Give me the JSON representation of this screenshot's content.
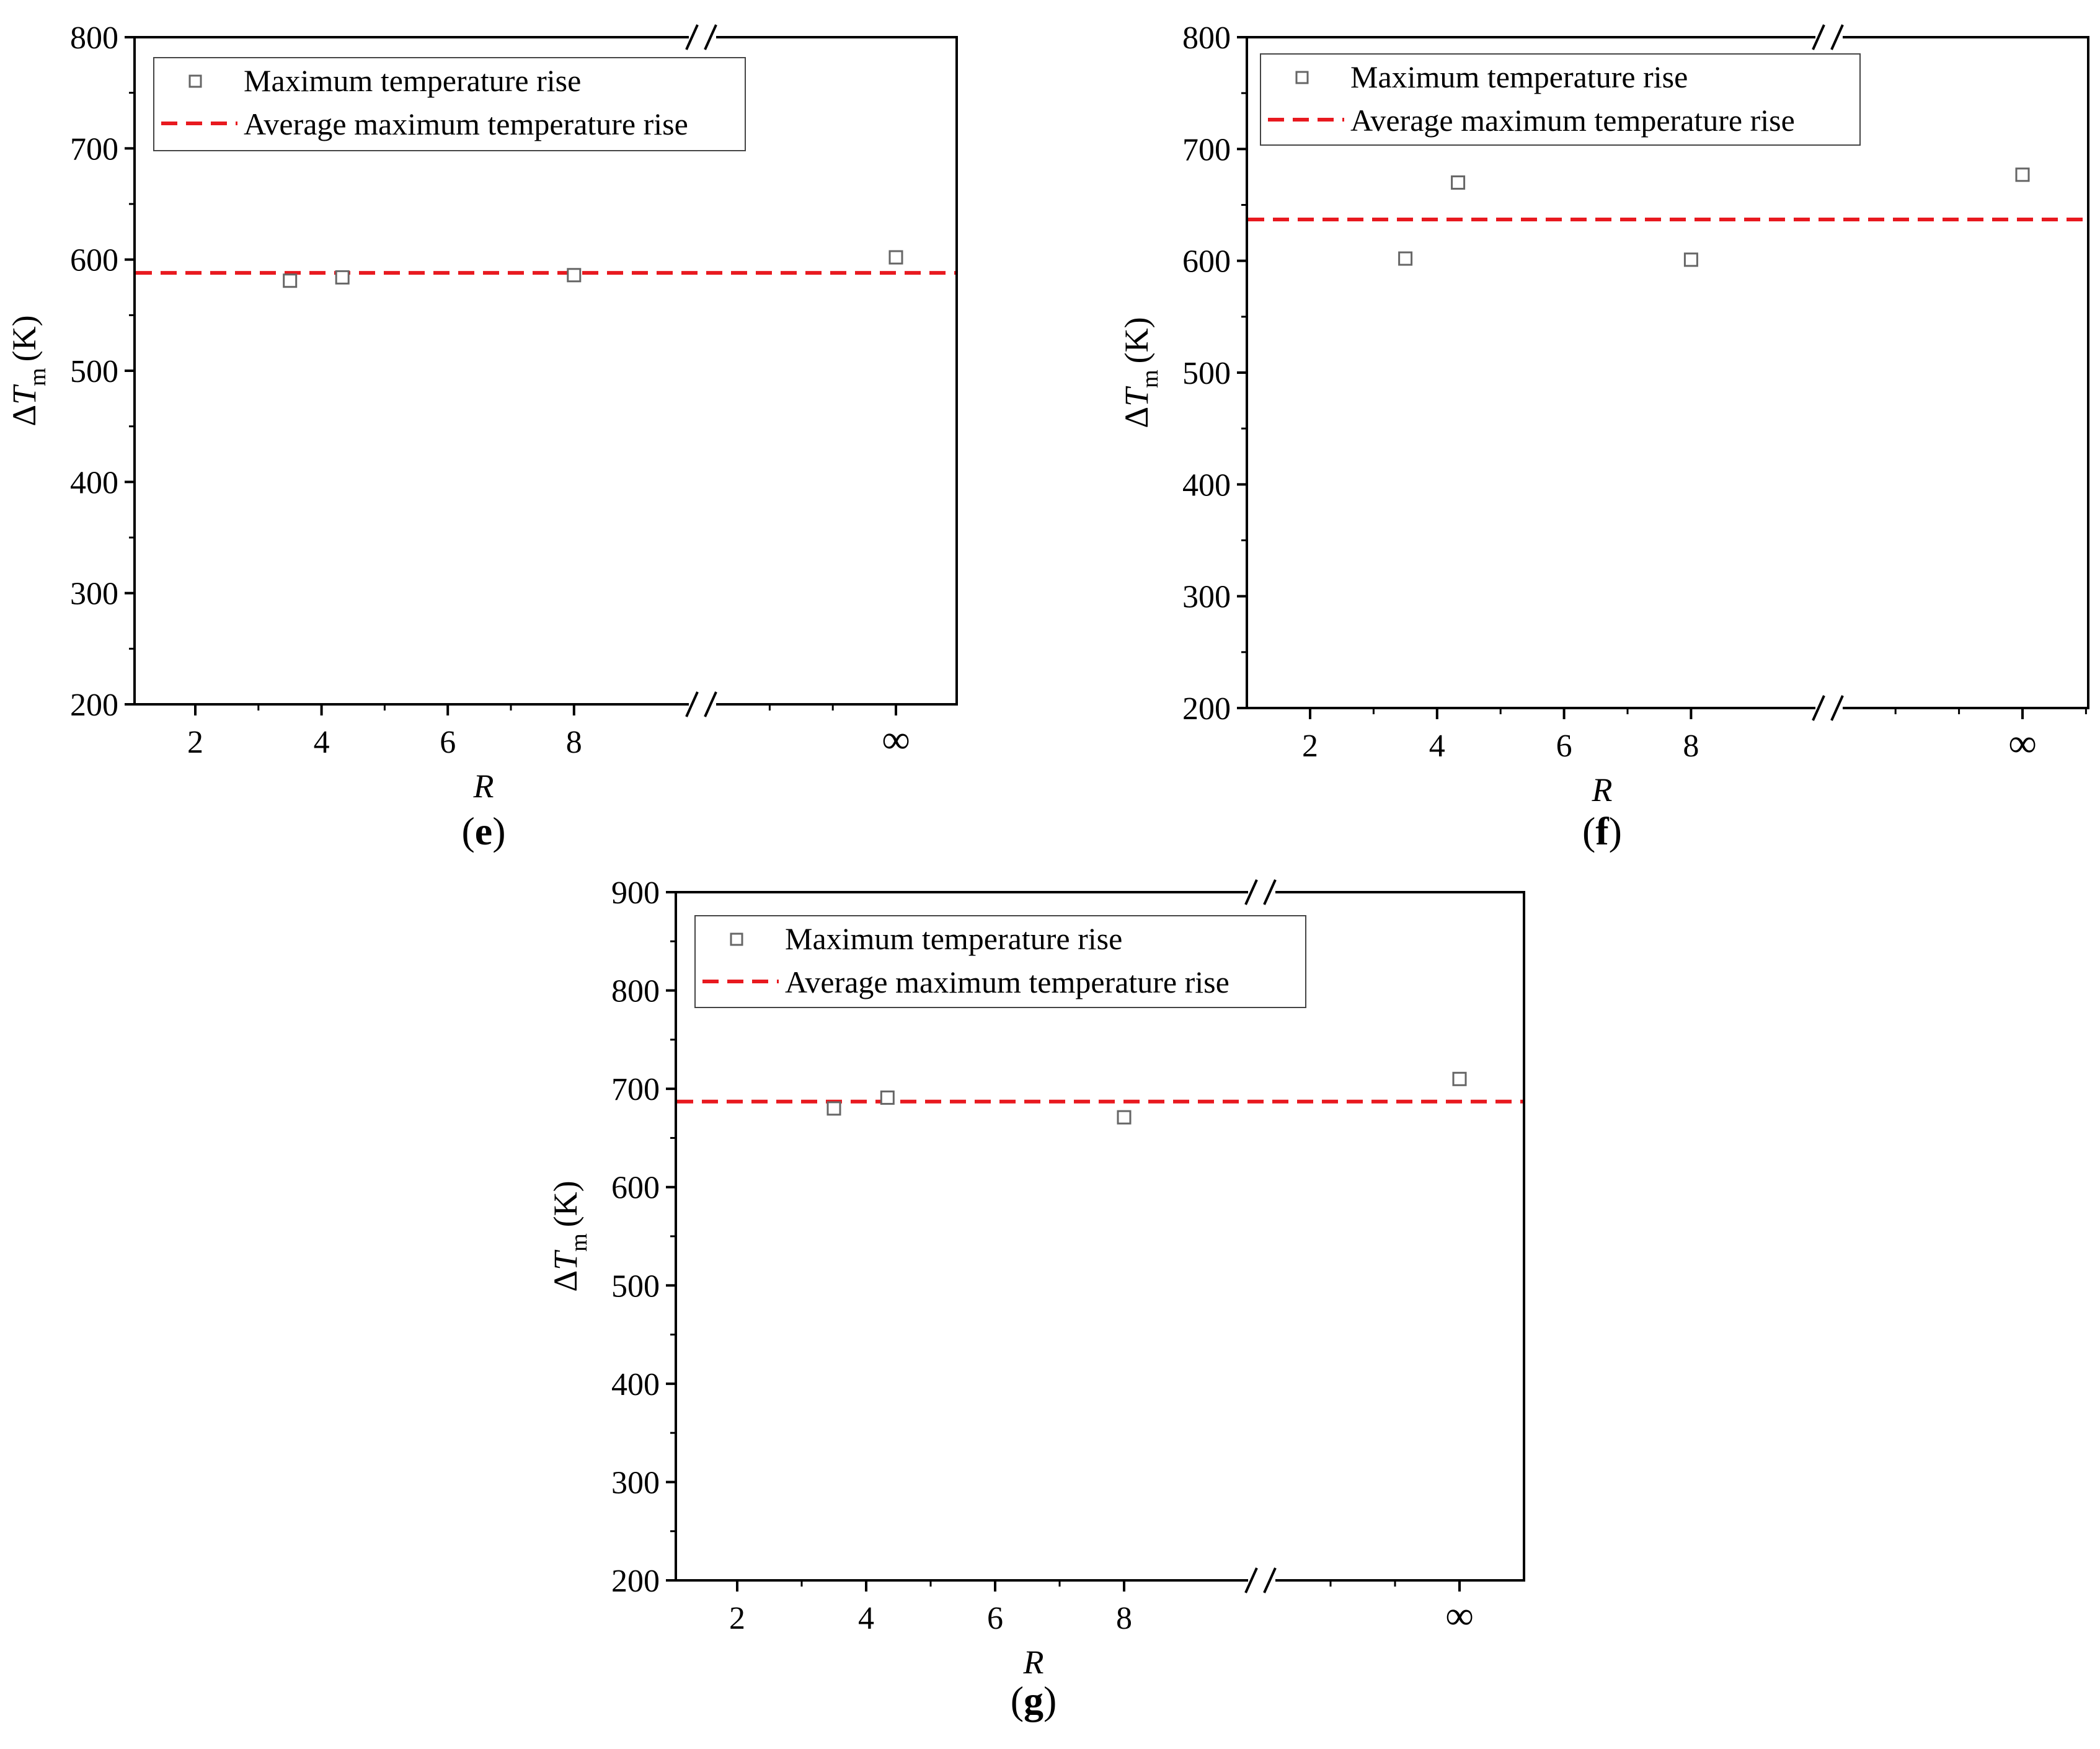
{
  "chart_data": [
    {
      "panel": "(e)",
      "panel_letter": "e",
      "type": "scatter",
      "xlabel": "R",
      "ylabel": "ΔT",
      "ylabel_subscript": "m",
      "ylabel_unit": "(K)",
      "ylim": [
        200,
        800
      ],
      "yticks": [
        200,
        300,
        400,
        500,
        600,
        700,
        800
      ],
      "xticks": [
        "2",
        "4",
        "6",
        "8",
        "∞"
      ],
      "x_axis_break": true,
      "legend": {
        "position": "top-left",
        "marker_entry": "Maximum temperature rise",
        "line_entry": "Average maximum temperature rise"
      },
      "series": [
        {
          "name": "Maximum temperature rise",
          "marker": "hollow-square",
          "color": "#666666",
          "points": [
            {
              "x": 3.5,
              "y": 581
            },
            {
              "x": 4.33,
              "y": 584
            },
            {
              "x": 8,
              "y": 586
            },
            {
              "x": "∞",
              "y": 602
            }
          ]
        },
        {
          "name": "Average maximum temperature rise",
          "style": "dashed",
          "color": "#e8191f",
          "y": 588
        }
      ]
    },
    {
      "panel": "(f)",
      "panel_letter": "f",
      "type": "scatter",
      "xlabel": "R",
      "ylabel": "ΔT",
      "ylabel_subscript": "m",
      "ylabel_unit": "(K)",
      "ylim": [
        200,
        800
      ],
      "yticks": [
        200,
        300,
        400,
        500,
        600,
        700,
        800
      ],
      "xticks": [
        "2",
        "4",
        "6",
        "8",
        "∞"
      ],
      "x_axis_break": true,
      "legend": {
        "position": "top-left",
        "marker_entry": "Maximum temperature rise",
        "line_entry": "Average maximum temperature rise"
      },
      "series": [
        {
          "name": "Maximum temperature rise",
          "marker": "hollow-square",
          "color": "#666666",
          "points": [
            {
              "x": 3.5,
              "y": 602
            },
            {
              "x": 4.33,
              "y": 670
            },
            {
              "x": 8,
              "y": 601
            },
            {
              "x": "∞",
              "y": 677
            }
          ]
        },
        {
          "name": "Average maximum temperature rise",
          "style": "dashed",
          "color": "#e8191f",
          "y": 637
        }
      ]
    },
    {
      "panel": "(g)",
      "panel_letter": "g",
      "type": "scatter",
      "xlabel": "R",
      "ylabel": "ΔT",
      "ylabel_subscript": "m",
      "ylabel_unit": "(K)",
      "ylim": [
        200,
        900
      ],
      "yticks": [
        200,
        300,
        400,
        500,
        600,
        700,
        800,
        900
      ],
      "xticks": [
        "2",
        "4",
        "6",
        "8",
        "∞"
      ],
      "x_axis_break": true,
      "legend": {
        "position": "top-left",
        "marker_entry": "Maximum temperature rise",
        "line_entry": "Average maximum temperature rise"
      },
      "series": [
        {
          "name": "Maximum temperature rise",
          "marker": "hollow-square",
          "color": "#666666",
          "points": [
            {
              "x": 3.5,
              "y": 680
            },
            {
              "x": 4.33,
              "y": 691
            },
            {
              "x": 8,
              "y": 671
            },
            {
              "x": "∞",
              "y": 710
            }
          ]
        },
        {
          "name": "Average maximum temperature rise",
          "style": "dashed",
          "color": "#e8191f",
          "y": 687
        }
      ]
    }
  ]
}
